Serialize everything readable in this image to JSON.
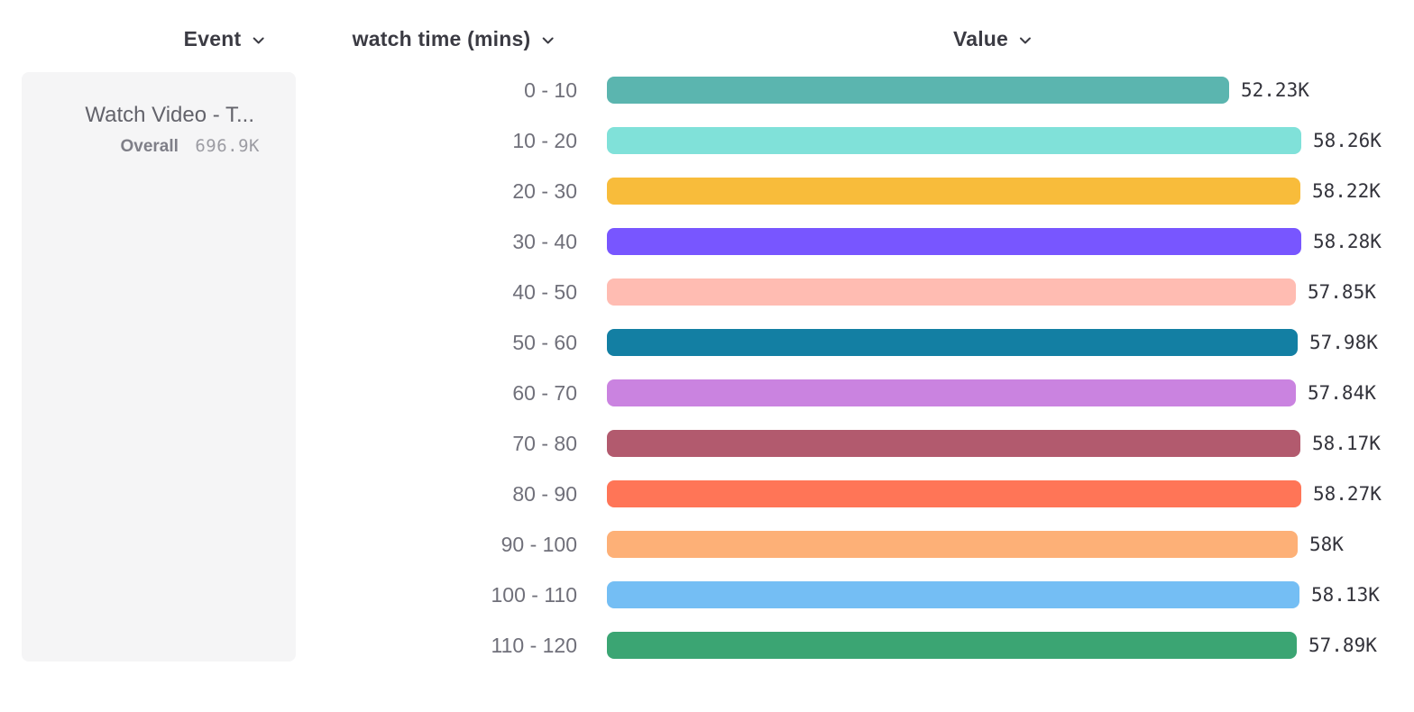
{
  "header": {
    "event_label": "Event",
    "dimension_label": "watch time (mins)",
    "value_label": "Value"
  },
  "event_card": {
    "title": "Watch Video - T...",
    "overall_label": "Overall",
    "overall_value": "696.9K"
  },
  "chart_data": {
    "type": "bar",
    "orientation": "horizontal",
    "title": "",
    "xlabel": "Value",
    "ylabel": "watch time (mins)",
    "xlim": [
      0,
      58.28
    ],
    "grid": false,
    "legend": "none",
    "categories": [
      "0 - 10",
      "10 - 20",
      "20 - 30",
      "30 - 40",
      "40 - 50",
      "50 - 60",
      "60 - 70",
      "70 - 80",
      "80 - 90",
      "90 - 100",
      "100 - 110",
      "110 - 120"
    ],
    "values": [
      52.23,
      58.26,
      58.22,
      58.28,
      57.85,
      57.98,
      57.84,
      58.17,
      58.27,
      58.0,
      58.13,
      57.89
    ],
    "unit": "K",
    "value_labels": [
      "52.23K",
      "58.26K",
      "58.22K",
      "58.28K",
      "57.85K",
      "57.98K",
      "57.84K",
      "58.17K",
      "58.27K",
      "58K",
      "58.13K",
      "57.89K"
    ],
    "bar_colors": [
      "#5BB5AF",
      "#80E1D9",
      "#F8BC3B",
      "#7856FF",
      "#FFBCB2",
      "#137FA3",
      "#CA83E0",
      "#B25A6E",
      "#FF7557",
      "#FDB077",
      "#74BEF4",
      "#3BA573"
    ]
  },
  "colors": {
    "page_bg": "#FFFFFF",
    "card_bg": "#F5F5F6",
    "header_text": "#3B3B43",
    "bucket_label_text": "#70707A",
    "value_text": "#33333B",
    "card_title_text": "#63636B",
    "overall_label_text": "#7F7F88",
    "overall_value_text": "#9C9CA3"
  },
  "icons": {
    "chevron_down": "chevron-down-icon"
  }
}
